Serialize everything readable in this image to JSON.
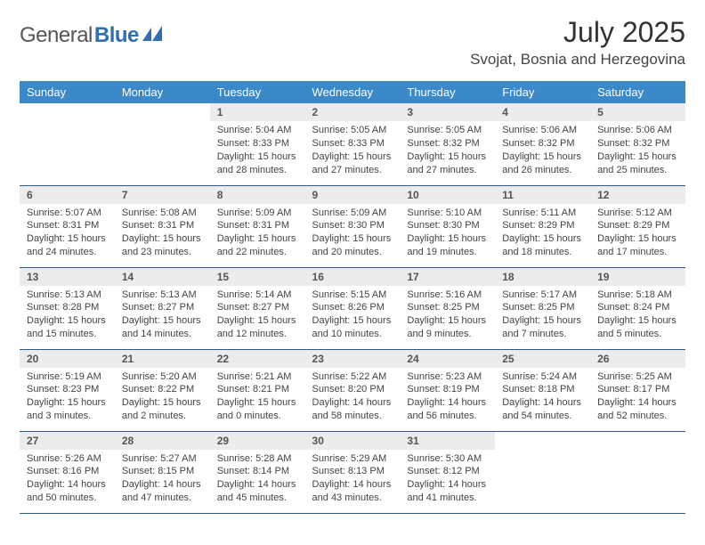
{
  "logo": {
    "part1": "General",
    "part2": "Blue"
  },
  "title": "July 2025",
  "location": "Svojat, Bosnia and Herzegovina",
  "colors": {
    "header_bg": "#3b89c9",
    "daynum_bg": "#ececec",
    "row_border": "#2f5a87",
    "logo_blue": "#2f6fb0"
  },
  "weekdays": [
    "Sunday",
    "Monday",
    "Tuesday",
    "Wednesday",
    "Thursday",
    "Friday",
    "Saturday"
  ],
  "weeks": [
    [
      null,
      null,
      {
        "n": "1",
        "sr": "Sunrise: 5:04 AM",
        "ss": "Sunset: 8:33 PM",
        "d1": "Daylight: 15 hours",
        "d2": "and 28 minutes."
      },
      {
        "n": "2",
        "sr": "Sunrise: 5:05 AM",
        "ss": "Sunset: 8:33 PM",
        "d1": "Daylight: 15 hours",
        "d2": "and 27 minutes."
      },
      {
        "n": "3",
        "sr": "Sunrise: 5:05 AM",
        "ss": "Sunset: 8:32 PM",
        "d1": "Daylight: 15 hours",
        "d2": "and 27 minutes."
      },
      {
        "n": "4",
        "sr": "Sunrise: 5:06 AM",
        "ss": "Sunset: 8:32 PM",
        "d1": "Daylight: 15 hours",
        "d2": "and 26 minutes."
      },
      {
        "n": "5",
        "sr": "Sunrise: 5:06 AM",
        "ss": "Sunset: 8:32 PM",
        "d1": "Daylight: 15 hours",
        "d2": "and 25 minutes."
      }
    ],
    [
      {
        "n": "6",
        "sr": "Sunrise: 5:07 AM",
        "ss": "Sunset: 8:31 PM",
        "d1": "Daylight: 15 hours",
        "d2": "and 24 minutes."
      },
      {
        "n": "7",
        "sr": "Sunrise: 5:08 AM",
        "ss": "Sunset: 8:31 PM",
        "d1": "Daylight: 15 hours",
        "d2": "and 23 minutes."
      },
      {
        "n": "8",
        "sr": "Sunrise: 5:09 AM",
        "ss": "Sunset: 8:31 PM",
        "d1": "Daylight: 15 hours",
        "d2": "and 22 minutes."
      },
      {
        "n": "9",
        "sr": "Sunrise: 5:09 AM",
        "ss": "Sunset: 8:30 PM",
        "d1": "Daylight: 15 hours",
        "d2": "and 20 minutes."
      },
      {
        "n": "10",
        "sr": "Sunrise: 5:10 AM",
        "ss": "Sunset: 8:30 PM",
        "d1": "Daylight: 15 hours",
        "d2": "and 19 minutes."
      },
      {
        "n": "11",
        "sr": "Sunrise: 5:11 AM",
        "ss": "Sunset: 8:29 PM",
        "d1": "Daylight: 15 hours",
        "d2": "and 18 minutes."
      },
      {
        "n": "12",
        "sr": "Sunrise: 5:12 AM",
        "ss": "Sunset: 8:29 PM",
        "d1": "Daylight: 15 hours",
        "d2": "and 17 minutes."
      }
    ],
    [
      {
        "n": "13",
        "sr": "Sunrise: 5:13 AM",
        "ss": "Sunset: 8:28 PM",
        "d1": "Daylight: 15 hours",
        "d2": "and 15 minutes."
      },
      {
        "n": "14",
        "sr": "Sunrise: 5:13 AM",
        "ss": "Sunset: 8:27 PM",
        "d1": "Daylight: 15 hours",
        "d2": "and 14 minutes."
      },
      {
        "n": "15",
        "sr": "Sunrise: 5:14 AM",
        "ss": "Sunset: 8:27 PM",
        "d1": "Daylight: 15 hours",
        "d2": "and 12 minutes."
      },
      {
        "n": "16",
        "sr": "Sunrise: 5:15 AM",
        "ss": "Sunset: 8:26 PM",
        "d1": "Daylight: 15 hours",
        "d2": "and 10 minutes."
      },
      {
        "n": "17",
        "sr": "Sunrise: 5:16 AM",
        "ss": "Sunset: 8:25 PM",
        "d1": "Daylight: 15 hours",
        "d2": "and 9 minutes."
      },
      {
        "n": "18",
        "sr": "Sunrise: 5:17 AM",
        "ss": "Sunset: 8:25 PM",
        "d1": "Daylight: 15 hours",
        "d2": "and 7 minutes."
      },
      {
        "n": "19",
        "sr": "Sunrise: 5:18 AM",
        "ss": "Sunset: 8:24 PM",
        "d1": "Daylight: 15 hours",
        "d2": "and 5 minutes."
      }
    ],
    [
      {
        "n": "20",
        "sr": "Sunrise: 5:19 AM",
        "ss": "Sunset: 8:23 PM",
        "d1": "Daylight: 15 hours",
        "d2": "and 3 minutes."
      },
      {
        "n": "21",
        "sr": "Sunrise: 5:20 AM",
        "ss": "Sunset: 8:22 PM",
        "d1": "Daylight: 15 hours",
        "d2": "and 2 minutes."
      },
      {
        "n": "22",
        "sr": "Sunrise: 5:21 AM",
        "ss": "Sunset: 8:21 PM",
        "d1": "Daylight: 15 hours",
        "d2": "and 0 minutes."
      },
      {
        "n": "23",
        "sr": "Sunrise: 5:22 AM",
        "ss": "Sunset: 8:20 PM",
        "d1": "Daylight: 14 hours",
        "d2": "and 58 minutes."
      },
      {
        "n": "24",
        "sr": "Sunrise: 5:23 AM",
        "ss": "Sunset: 8:19 PM",
        "d1": "Daylight: 14 hours",
        "d2": "and 56 minutes."
      },
      {
        "n": "25",
        "sr": "Sunrise: 5:24 AM",
        "ss": "Sunset: 8:18 PM",
        "d1": "Daylight: 14 hours",
        "d2": "and 54 minutes."
      },
      {
        "n": "26",
        "sr": "Sunrise: 5:25 AM",
        "ss": "Sunset: 8:17 PM",
        "d1": "Daylight: 14 hours",
        "d2": "and 52 minutes."
      }
    ],
    [
      {
        "n": "27",
        "sr": "Sunrise: 5:26 AM",
        "ss": "Sunset: 8:16 PM",
        "d1": "Daylight: 14 hours",
        "d2": "and 50 minutes."
      },
      {
        "n": "28",
        "sr": "Sunrise: 5:27 AM",
        "ss": "Sunset: 8:15 PM",
        "d1": "Daylight: 14 hours",
        "d2": "and 47 minutes."
      },
      {
        "n": "29",
        "sr": "Sunrise: 5:28 AM",
        "ss": "Sunset: 8:14 PM",
        "d1": "Daylight: 14 hours",
        "d2": "and 45 minutes."
      },
      {
        "n": "30",
        "sr": "Sunrise: 5:29 AM",
        "ss": "Sunset: 8:13 PM",
        "d1": "Daylight: 14 hours",
        "d2": "and 43 minutes."
      },
      {
        "n": "31",
        "sr": "Sunrise: 5:30 AM",
        "ss": "Sunset: 8:12 PM",
        "d1": "Daylight: 14 hours",
        "d2": "and 41 minutes."
      },
      null,
      null
    ]
  ]
}
